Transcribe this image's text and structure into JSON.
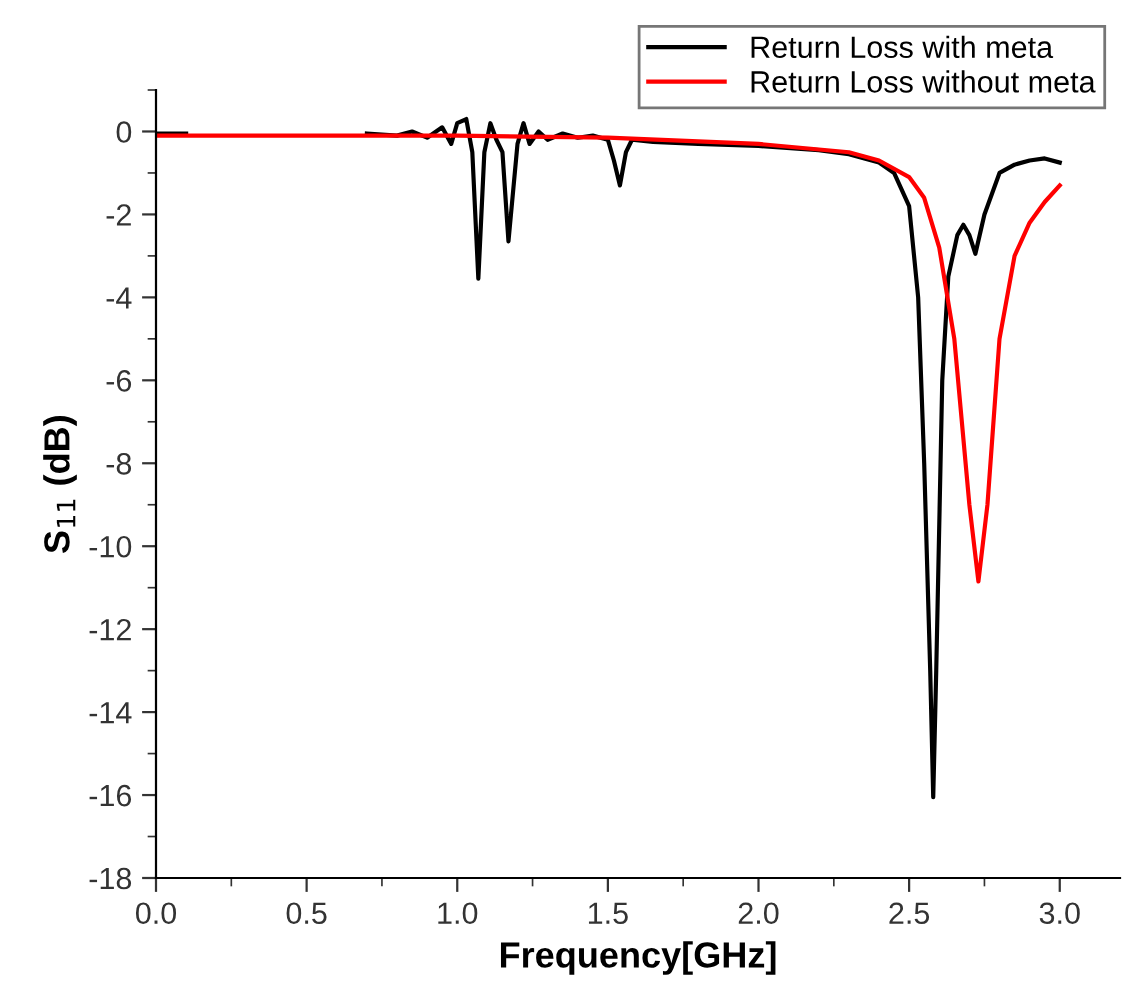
{
  "chart_data": {
    "type": "line",
    "xlabel": "Frequency[GHz]",
    "ylabel": "S$_{11}$ (dB)",
    "xlim": [
      0,
      3.2
    ],
    "xticks": [
      {
        "value": 0,
        "label": "0.0"
      },
      0.5,
      {
        "value": 1,
        "label": "1.0"
      },
      1.5,
      {
        "value": 2,
        "label": "2.0"
      },
      2.5,
      {
        "value": 3,
        "label": "3.0"
      }
    ],
    "ylim": [
      -18,
      1
    ],
    "yticks": [
      -18,
      -16,
      -14,
      -12,
      -10,
      -8,
      -6,
      -4,
      -2,
      0
    ],
    "grid": false,
    "legend": "top right",
    "marker": "none",
    "line_style": "solid",
    "series": [
      {
        "name": "Return Loss with meta",
        "color": "#000000",
        "x": [
          0,
          0.1,
          0.2,
          0.3,
          0.4,
          0.5,
          0.6,
          0.7,
          0.8,
          0.85,
          0.9,
          0.95,
          0.98,
          1.0,
          1.03,
          1.05,
          1.07,
          1.09,
          1.11,
          1.13,
          1.15,
          1.17,
          1.2,
          1.22,
          1.24,
          1.27,
          1.3,
          1.35,
          1.4,
          1.45,
          1.5,
          1.52,
          1.54,
          1.56,
          1.58,
          1.65,
          1.8,
          2.0,
          2.2,
          2.3,
          2.4,
          2.45,
          2.5,
          2.53,
          2.55,
          2.57,
          2.58,
          2.59,
          2.61,
          2.63,
          2.66,
          2.68,
          2.7,
          2.72,
          2.75,
          2.8,
          2.85,
          2.9,
          2.95,
          3.0
        ],
        "values": [
          -0.05,
          -0.05,
          null,
          null,
          null,
          null,
          null,
          -0.05,
          -0.1,
          0.0,
          -0.15,
          0.1,
          -0.3,
          0.2,
          0.3,
          -0.5,
          -3.55,
          -0.5,
          0.2,
          -0.2,
          -0.5,
          -2.65,
          -0.3,
          0.2,
          -0.3,
          0.0,
          -0.2,
          -0.05,
          -0.15,
          -0.1,
          -0.2,
          -0.7,
          -1.3,
          -0.5,
          -0.2,
          -0.25,
          -0.3,
          -0.35,
          -0.45,
          -0.55,
          -0.75,
          -1.0,
          -1.8,
          -4.0,
          -8.0,
          -13.0,
          -16.05,
          -13.0,
          -6.0,
          -3.5,
          -2.5,
          -2.25,
          -2.5,
          -2.95,
          -2.0,
          -1.0,
          -0.8,
          -0.7,
          -0.65,
          -0.75
        ]
      },
      {
        "name": "Return Loss without meta",
        "color": "#ff0000",
        "x": [
          0,
          0.5,
          1.0,
          1.5,
          2.0,
          2.3,
          2.4,
          2.5,
          2.55,
          2.6,
          2.65,
          2.7,
          2.73,
          2.76,
          2.8,
          2.85,
          2.9,
          2.95,
          3.0
        ],
        "values": [
          -0.1,
          -0.1,
          -0.1,
          -0.15,
          -0.3,
          -0.5,
          -0.7,
          -1.1,
          -1.6,
          -2.8,
          -5.0,
          -9.0,
          -10.85,
          -9.0,
          -5.0,
          -3.0,
          -2.2,
          -1.7,
          -1.3
        ]
      }
    ]
  }
}
